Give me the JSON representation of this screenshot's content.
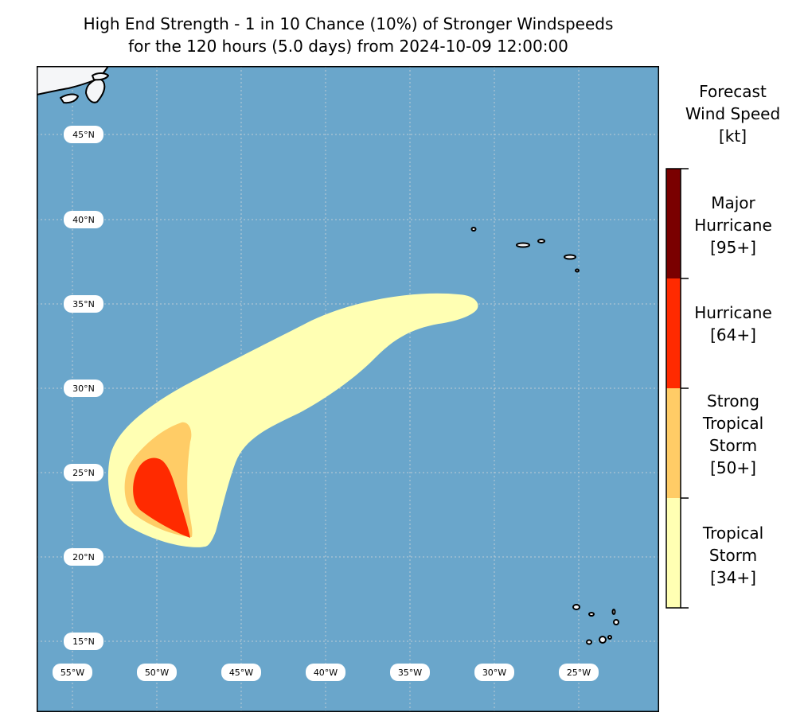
{
  "title": {
    "line1": "High End Strength - 1 in 10 Chance (10%) of Stronger Windspeeds",
    "line2": "for the 120 hours (5.0 days) from 2024-10-09 12:00:00"
  },
  "map": {
    "lon_range": [
      -57.0,
      -20.2
    ],
    "lat_range": [
      12.3,
      50.3
    ],
    "lat_labels": [
      "45°N",
      "40°N",
      "35°N",
      "30°N",
      "25°N",
      "20°N",
      "15°N"
    ],
    "lon_labels": [
      "55°W",
      "50°W",
      "45°W",
      "40°W",
      "35°W",
      "30°W",
      "25°W"
    ],
    "ocean_color": "#6aa6cb",
    "land_color": "#f5f6f8",
    "grid": true
  },
  "legend": {
    "title": [
      "Forecast",
      "Wind Speed",
      "[kt]"
    ],
    "categories": [
      {
        "lines": [
          "Major",
          "Hurricane",
          "[95+]"
        ],
        "color": "#7a0000"
      },
      {
        "lines": [
          "Hurricane",
          "[64+]"
        ],
        "color": "#ff2a00"
      },
      {
        "lines": [
          "Strong",
          "Tropical",
          "Storm",
          "[50+]"
        ],
        "color": "#ffcc66"
      },
      {
        "lines": [
          "Tropical",
          "Storm",
          "[34+]"
        ],
        "color": "#ffffb3"
      }
    ]
  }
}
